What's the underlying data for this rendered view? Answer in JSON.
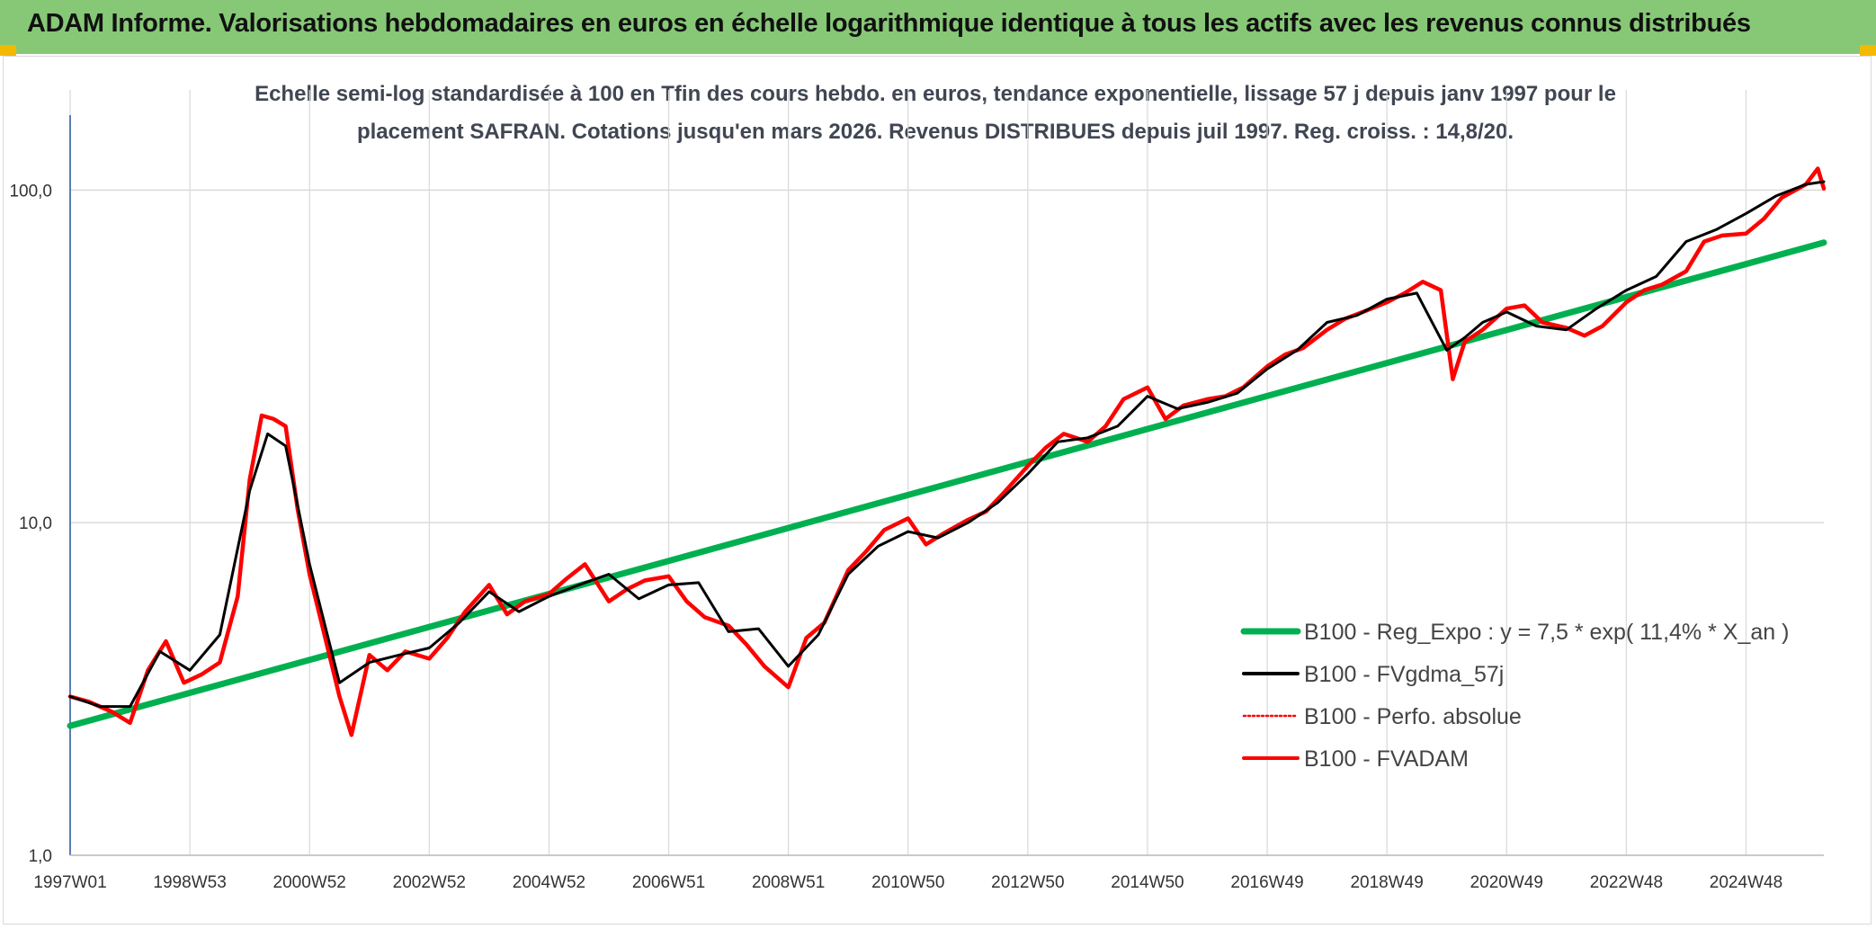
{
  "header": {
    "title": "ADAM Informe. Valorisations hebdomadaires en euros en échelle logarithmique identique à tous les actifs avec les revenus connus distribués"
  },
  "colors": {
    "banner": "#86c876",
    "regression": "#00b050",
    "smoothed": "#000000",
    "absolute": "#ff0000",
    "fvadam": "#ff0000",
    "grid": "#d9d9d9"
  },
  "chart_data": {
    "type": "line",
    "title_lines": [
      "Echelle semi-log standardisée à 100 en Tfin des cours hebdo. en euros, tendance exponentielle, lissage 57 j depuis janv 1997 pour le",
      "placement SAFRAN. Cotations jusqu'en mars 2026. Revenus DISTRIBUES depuis juil 1997. Reg. croiss. : 14,8/20."
    ],
    "y_scale": "log",
    "ylim": [
      1,
      200
    ],
    "y_ticks": [
      {
        "value": 1,
        "label": "1,0"
      },
      {
        "value": 10,
        "label": "10,0"
      },
      {
        "value": 100,
        "label": "100,0"
      }
    ],
    "xlim": [
      1997.0,
      2026.3
    ],
    "x_ticks": [
      {
        "value": 1997.0,
        "label": "1997W01"
      },
      {
        "value": 1999.0,
        "label": "1998W53"
      },
      {
        "value": 2001.0,
        "label": "2000W52"
      },
      {
        "value": 2003.0,
        "label": "2002W52"
      },
      {
        "value": 2005.0,
        "label": "2004W52"
      },
      {
        "value": 2007.0,
        "label": "2006W51"
      },
      {
        "value": 2009.0,
        "label": "2008W51"
      },
      {
        "value": 2011.0,
        "label": "2010W50"
      },
      {
        "value": 2013.0,
        "label": "2012W50"
      },
      {
        "value": 2015.0,
        "label": "2014W50"
      },
      {
        "value": 2017.0,
        "label": "2016W49"
      },
      {
        "value": 2019.0,
        "label": "2018W49"
      },
      {
        "value": 2021.0,
        "label": "2020W49"
      },
      {
        "value": 2023.0,
        "label": "2022W48"
      },
      {
        "value": 2025.0,
        "label": "2024W48"
      }
    ],
    "grid": true,
    "legend_position": "lower-right",
    "series": [
      {
        "name": "B100 - Reg_Expo : y = 7,5 * exp( 11,4% *  X_an )",
        "style": "line",
        "x": [
          1997.0,
          2026.3
        ],
        "y": [
          2.45,
          69.5
        ]
      },
      {
        "name": "B100 - FVgdma_57j",
        "style": "line",
        "x": [
          1997.0,
          1997.5,
          1998.0,
          1998.5,
          1999.0,
          1999.5,
          2000.0,
          2000.3,
          2000.6,
          2001.0,
          2001.5,
          2002.0,
          2002.5,
          2003.0,
          2003.5,
          2004.0,
          2004.5,
          2005.0,
          2005.5,
          2006.0,
          2006.5,
          2007.0,
          2007.5,
          2008.0,
          2008.5,
          2009.0,
          2009.5,
          2010.0,
          2010.5,
          2011.0,
          2011.5,
          2012.0,
          2012.5,
          2013.0,
          2013.5,
          2014.0,
          2014.5,
          2015.0,
          2015.5,
          2016.0,
          2016.5,
          2017.0,
          2017.5,
          2018.0,
          2018.5,
          2019.0,
          2019.5,
          2020.0,
          2020.3,
          2020.6,
          2021.0,
          2021.5,
          2022.0,
          2022.5,
          2023.0,
          2023.5,
          2024.0,
          2024.5,
          2025.0,
          2025.5,
          2026.0,
          2026.3
        ],
        "y": [
          3.0,
          2.8,
          2.8,
          4.1,
          3.6,
          4.6,
          12.5,
          18.5,
          17.0,
          7.5,
          3.3,
          3.8,
          4.0,
          4.2,
          5.0,
          6.2,
          5.4,
          6.0,
          6.5,
          7.0,
          5.9,
          6.5,
          6.6,
          4.7,
          4.8,
          3.7,
          4.6,
          7.0,
          8.5,
          9.4,
          9.0,
          10.0,
          11.5,
          14.0,
          17.5,
          18.0,
          19.5,
          24.0,
          22.0,
          23.0,
          24.5,
          29.0,
          33.0,
          40.0,
          42.0,
          47.0,
          49.0,
          33.0,
          36.0,
          40.0,
          43.0,
          39.0,
          38.0,
          44.0,
          50.0,
          55.0,
          70.0,
          76.0,
          85.0,
          96.0,
          104.0,
          106.0
        ]
      },
      {
        "name": "B100 - Perfo. absolue",
        "style": "dotted",
        "x": [
          1997.0,
          1997.3,
          1997.7,
          1998.0,
          1998.3,
          1998.6,
          1998.9,
          1999.2,
          1999.5,
          1999.8,
          2000.0,
          2000.2,
          2000.4,
          2000.6,
          2000.8,
          2001.0,
          2001.2,
          2001.5,
          2001.7,
          2002.0,
          2002.3,
          2002.6,
          2003.0,
          2003.3,
          2003.6,
          2004.0,
          2004.3,
          2004.6,
          2005.0,
          2005.3,
          2005.6,
          2006.0,
          2006.3,
          2006.6,
          2007.0,
          2007.3,
          2007.6,
          2008.0,
          2008.3,
          2008.6,
          2009.0,
          2009.3,
          2009.6,
          2010.0,
          2010.3,
          2010.6,
          2011.0,
          2011.3,
          2011.6,
          2012.0,
          2012.3,
          2012.6,
          2013.0,
          2013.3,
          2013.6,
          2014.0,
          2014.3,
          2014.6,
          2015.0,
          2015.3,
          2015.6,
          2016.0,
          2016.3,
          2016.6,
          2017.0,
          2017.3,
          2017.6,
          2018.0,
          2018.3,
          2018.6,
          2019.0,
          2019.3,
          2019.6,
          2019.9,
          2020.1,
          2020.3,
          2020.6,
          2021.0,
          2021.3,
          2021.6,
          2022.0,
          2022.3,
          2022.6,
          2023.0,
          2023.3,
          2023.6,
          2024.0,
          2024.3,
          2024.6,
          2025.0,
          2025.3,
          2025.6,
          2026.0,
          2026.2,
          2026.3
        ],
        "y": [
          3.0,
          2.9,
          2.7,
          2.5,
          3.6,
          4.4,
          3.3,
          3.5,
          3.8,
          6.0,
          13.5,
          21.0,
          20.5,
          19.5,
          11.0,
          7.0,
          5.0,
          3.0,
          2.3,
          4.0,
          3.6,
          4.1,
          3.9,
          4.5,
          5.4,
          6.5,
          5.3,
          5.8,
          6.1,
          6.8,
          7.5,
          5.8,
          6.3,
          6.7,
          6.9,
          5.8,
          5.2,
          4.9,
          4.3,
          3.7,
          3.2,
          4.5,
          5.0,
          7.2,
          8.2,
          9.5,
          10.3,
          8.6,
          9.3,
          10.2,
          10.8,
          12.3,
          14.8,
          16.8,
          18.5,
          17.5,
          19.5,
          23.5,
          25.5,
          20.5,
          22.5,
          23.5,
          24.0,
          25.5,
          29.5,
          32.0,
          33.5,
          38.0,
          41.0,
          43.0,
          46.0,
          49.0,
          53.0,
          50.0,
          27.0,
          35.0,
          38.0,
          44.0,
          45.0,
          40.0,
          38.5,
          36.5,
          39.0,
          46.0,
          50.0,
          52.0,
          57.0,
          70.0,
          73.0,
          74.0,
          82.0,
          95.0,
          104.0,
          116.0,
          101.0
        ]
      },
      {
        "name": "B100 - FVADAM",
        "style": "line",
        "x": [
          1997.0,
          1997.3,
          1997.7,
          1998.0,
          1998.3,
          1998.6,
          1998.9,
          1999.2,
          1999.5,
          1999.8,
          2000.0,
          2000.2,
          2000.4,
          2000.6,
          2000.8,
          2001.0,
          2001.2,
          2001.5,
          2001.7,
          2002.0,
          2002.3,
          2002.6,
          2003.0,
          2003.3,
          2003.6,
          2004.0,
          2004.3,
          2004.6,
          2005.0,
          2005.3,
          2005.6,
          2006.0,
          2006.3,
          2006.6,
          2007.0,
          2007.3,
          2007.6,
          2008.0,
          2008.3,
          2008.6,
          2009.0,
          2009.3,
          2009.6,
          2010.0,
          2010.3,
          2010.6,
          2011.0,
          2011.3,
          2011.6,
          2012.0,
          2012.3,
          2012.6,
          2013.0,
          2013.3,
          2013.6,
          2014.0,
          2014.3,
          2014.6,
          2015.0,
          2015.3,
          2015.6,
          2016.0,
          2016.3,
          2016.6,
          2017.0,
          2017.3,
          2017.6,
          2018.0,
          2018.3,
          2018.6,
          2019.0,
          2019.3,
          2019.6,
          2019.9,
          2020.1,
          2020.3,
          2020.6,
          2021.0,
          2021.3,
          2021.6,
          2022.0,
          2022.3,
          2022.6,
          2023.0,
          2023.3,
          2023.6,
          2024.0,
          2024.3,
          2024.6,
          2025.0,
          2025.3,
          2025.6,
          2026.0,
          2026.2,
          2026.3
        ],
        "y": [
          3.0,
          2.9,
          2.7,
          2.5,
          3.6,
          4.4,
          3.3,
          3.5,
          3.8,
          6.0,
          13.5,
          21.0,
          20.5,
          19.5,
          11.0,
          7.0,
          5.0,
          3.0,
          2.3,
          4.0,
          3.6,
          4.1,
          3.9,
          4.5,
          5.4,
          6.5,
          5.3,
          5.8,
          6.1,
          6.8,
          7.5,
          5.8,
          6.3,
          6.7,
          6.9,
          5.8,
          5.2,
          4.9,
          4.3,
          3.7,
          3.2,
          4.5,
          5.0,
          7.2,
          8.2,
          9.5,
          10.3,
          8.6,
          9.3,
          10.2,
          10.8,
          12.3,
          14.8,
          16.8,
          18.5,
          17.5,
          19.5,
          23.5,
          25.5,
          20.5,
          22.5,
          23.5,
          24.0,
          25.5,
          29.5,
          32.0,
          33.5,
          38.0,
          41.0,
          43.0,
          46.0,
          49.0,
          53.0,
          50.0,
          27.0,
          35.0,
          38.0,
          44.0,
          45.0,
          40.0,
          38.5,
          36.5,
          39.0,
          46.0,
          50.0,
          52.0,
          57.0,
          70.0,
          73.0,
          74.0,
          82.0,
          95.0,
          104.0,
          116.0,
          101.0
        ]
      }
    ]
  }
}
